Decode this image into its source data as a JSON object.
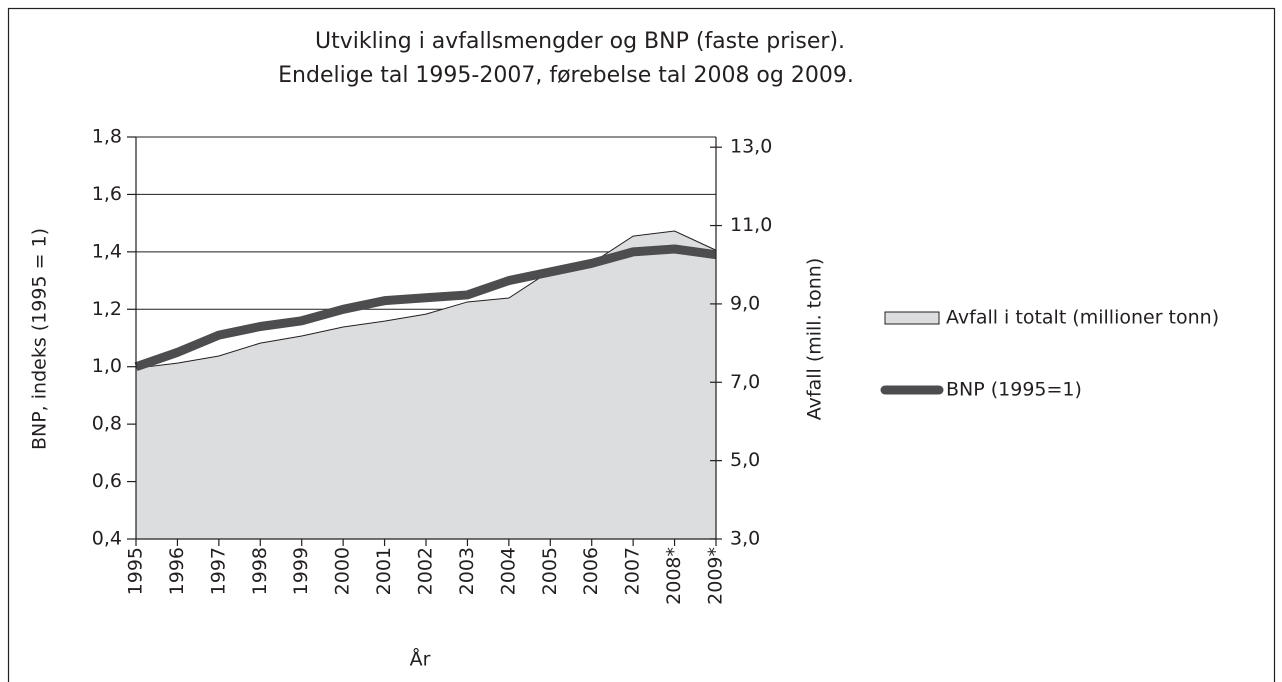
{
  "chart_data": {
    "type": "area_line",
    "title": [
      "Utvikling i avfallsmengder og BNP (faste priser).",
      "Endelige tal 1995-2007, førebelse tal 2008 og 2009."
    ],
    "x_label": "År",
    "y_label": "BNP, indeks (1995 = 1)",
    "y2_label": "Avfall (mill. tonn)",
    "categories": [
      "1995",
      "1996",
      "1997",
      "1998",
      "1999",
      "2000",
      "2001",
      "2002",
      "2003",
      "2004",
      "2005",
      "2006",
      "2007",
      "2008*",
      "2009*"
    ],
    "series": [
      {
        "name": "Avfall i totalt (millioner tonn)",
        "kind": "area",
        "axis": "y2",
        "color": "#dcdddf",
        "values": [
          7.36,
          7.49,
          7.67,
          8.0,
          8.18,
          8.41,
          8.56,
          8.74,
          9.05,
          9.15,
          9.84,
          10.04,
          10.73,
          10.86,
          10.37
        ]
      },
      {
        "name": "BNP (1995=1)",
        "kind": "line",
        "color": "#4d4d4f",
        "values": [
          1.0,
          1.05,
          1.11,
          1.14,
          1.16,
          1.2,
          1.23,
          1.24,
          1.25,
          1.3,
          1.33,
          1.36,
          1.4,
          1.41,
          1.39
        ]
      }
    ],
    "ylim": [
      0.4,
      1.8
    ],
    "yticks": [
      {
        "value": 0.4,
        "label": "0,4"
      },
      {
        "value": 0.6,
        "label": "0,6"
      },
      {
        "value": 0.8,
        "label": "0,8"
      },
      {
        "value": 1.0,
        "label": "1,0"
      },
      {
        "value": 1.2,
        "label": "1,2"
      },
      {
        "value": 1.4,
        "label": "1,4"
      },
      {
        "value": 1.6,
        "label": "1,6"
      },
      {
        "value": 1.8,
        "label": "1,8"
      }
    ],
    "y2lim": [
      3.0,
      13.26
    ],
    "y2ticks": [
      {
        "value": 3.0,
        "label": "3,0"
      },
      {
        "value": 5.0,
        "label": "5,0"
      },
      {
        "value": 7.0,
        "label": "7,0"
      },
      {
        "value": 9.0,
        "label": "9,0"
      },
      {
        "value": 11.0,
        "label": "11,0"
      },
      {
        "value": 13.0,
        "label": "13,0"
      }
    ],
    "grid": true,
    "legend": "right"
  }
}
